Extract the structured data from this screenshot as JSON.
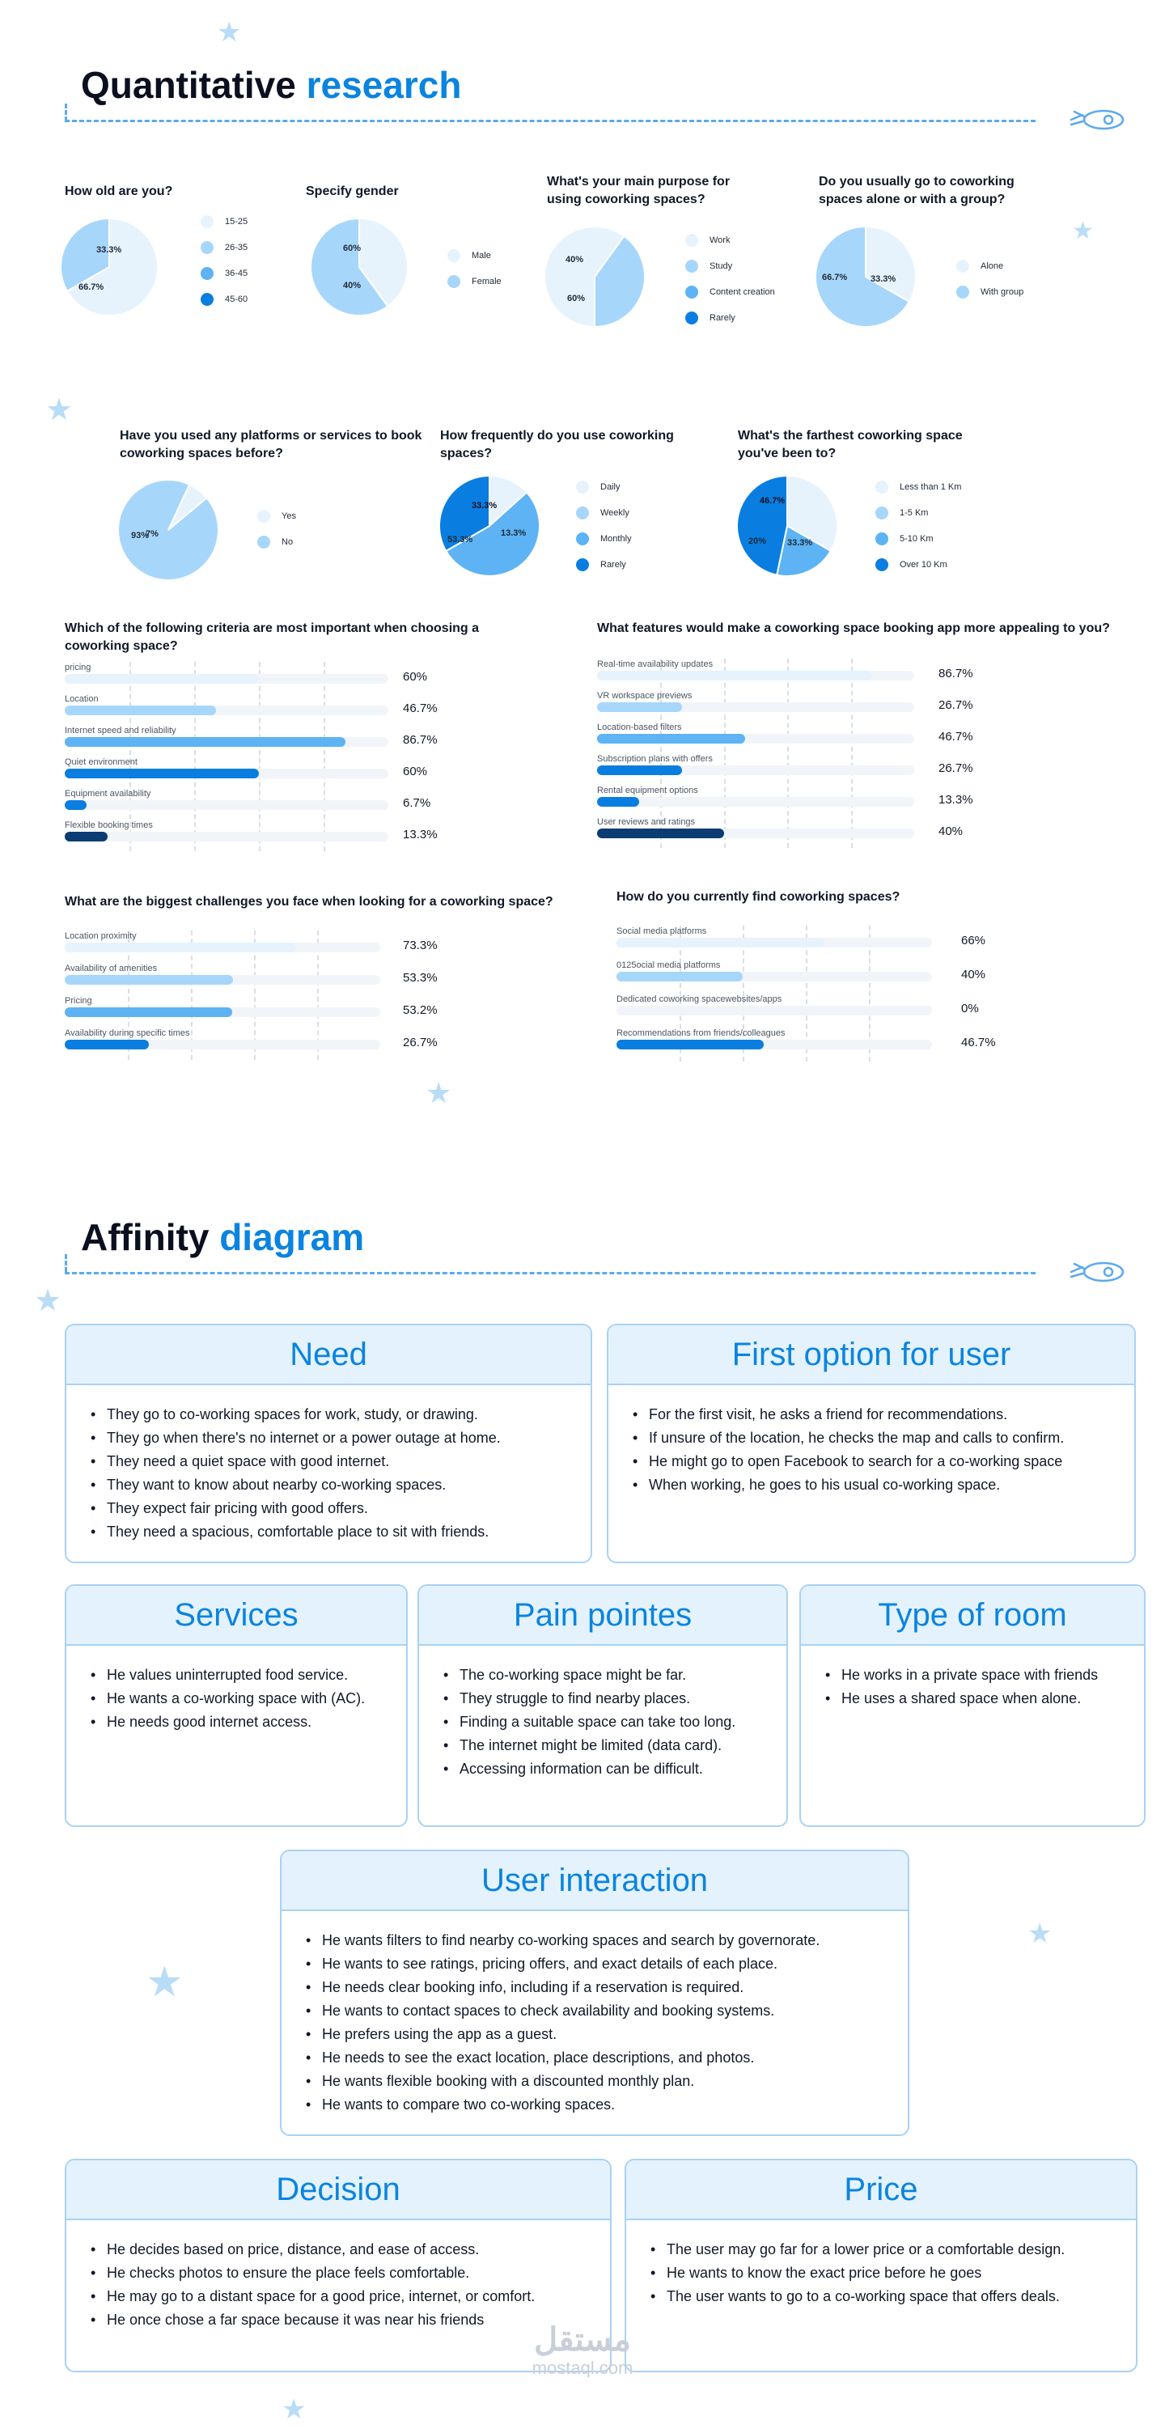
{
  "quant": {
    "title_main": "Quantitative",
    "title_accent": "research"
  },
  "affinity": {
    "title_main": "Affinity",
    "title_accent": "diagram"
  },
  "colors": {
    "c1": "#e6f3fd",
    "c2": "#a7d6fb",
    "c3": "#5db3f3",
    "c4": "#0a7ee0",
    "c5": "#0b3c73"
  },
  "chart_data": [
    {
      "type": "pie",
      "title": "How old are you?",
      "categories": [
        "15-25",
        "26-35",
        "36-45",
        "45-60"
      ],
      "values": [
        66.7,
        33.3,
        0,
        0
      ],
      "labels": [
        "66.7%",
        "33.3%"
      ]
    },
    {
      "type": "pie",
      "title": "Specify gender",
      "categories": [
        "Male",
        "Female"
      ],
      "values": [
        40,
        60
      ],
      "labels": [
        "40%",
        "60%"
      ]
    },
    {
      "type": "pie",
      "title": "What's your main purpose for using coworking spaces?",
      "categories": [
        "Work",
        "Study",
        "Content creation",
        "Rarely"
      ],
      "values": [
        60,
        40,
        0,
        0
      ],
      "labels": [
        "60%",
        "40%"
      ]
    },
    {
      "type": "pie",
      "title": "Do you usually go to coworking spaces alone or with a group?",
      "categories": [
        "Alone",
        "With group"
      ],
      "values": [
        33.3,
        66.7
      ],
      "labels": [
        "33.3%",
        "66.7%"
      ]
    },
    {
      "type": "pie",
      "title": "Have you used any platforms or services to book coworking spaces before?",
      "categories": [
        "Yes",
        "No"
      ],
      "values": [
        7,
        93
      ],
      "labels": [
        "7%",
        "93%"
      ]
    },
    {
      "type": "pie",
      "title": "How frequently do you use coworking spaces?",
      "categories": [
        "Daily",
        "Weekly",
        "Monthly",
        "Rarely"
      ],
      "values": [
        13.3,
        0,
        53.3,
        33.3
      ],
      "labels": [
        "13.3%",
        "53.3%",
        "33.3%"
      ]
    },
    {
      "type": "pie",
      "title": "What's the farthest coworking space you've been to?",
      "categories": [
        "Less than 1 Km",
        "1-5 Km",
        "5-10 Km",
        "Over 10 Km"
      ],
      "values": [
        33.3,
        0,
        20,
        46.7
      ],
      "labels": [
        "33.3%",
        "20%",
        "46.7%"
      ]
    },
    {
      "type": "bar",
      "title": "Which of the following criteria are most important when choosing a coworking space?",
      "categories": [
        "pricing",
        "Location",
        "Internet speed and reliability",
        "Quiet environment",
        "Equipment availability",
        "Flexible booking times"
      ],
      "values": [
        60,
        46.7,
        86.7,
        60,
        6.7,
        13.3
      ],
      "labels": [
        "60%",
        "46.7%",
        "86.7%",
        "60%",
        "6.7%",
        "13.3%"
      ]
    },
    {
      "type": "bar",
      "title": "What features would make a coworking space booking app more appealing to you?",
      "categories": [
        "Real-time availability updates",
        "VR workspace previews",
        "Location-based filters",
        "Subscription plans with offers",
        "Rental equipment options",
        "User reviews and ratings"
      ],
      "values": [
        86.7,
        26.7,
        46.7,
        26.7,
        13.3,
        40
      ],
      "labels": [
        "86.7%",
        "26.7%",
        "46.7%",
        "26.7%",
        "13.3%",
        "40%"
      ]
    },
    {
      "type": "bar",
      "title": "What are the biggest challenges you face when looking for a coworking space?",
      "categories": [
        "Location proximity",
        "Availability of amenities",
        "Pricing",
        "Availability during specific times"
      ],
      "values": [
        73.3,
        53.3,
        53.2,
        26.7
      ],
      "labels": [
        "73.3%",
        "53.3%",
        "53.2%",
        "26.7%"
      ]
    },
    {
      "type": "bar",
      "title": "How do you currently find coworking spaces?",
      "categories": [
        "Social media platforms",
        "0125ocial media platforms",
        "Dedicated coworking spacewebsites/apps",
        "Recommendations from friends/colleagues"
      ],
      "values": [
        66,
        40,
        0,
        46.7
      ],
      "labels": [
        "66%",
        "40%",
        "0%",
        "46.7%"
      ]
    }
  ],
  "cards": [
    {
      "title": "Need",
      "items": [
        "They go to co-working spaces for work, study, or drawing.",
        "They go when there's no internet or a power outage at home.",
        "They need a quiet space with good internet.",
        "They want to know about nearby co-working spaces.",
        "They expect fair pricing with good offers.",
        "They need a spacious, comfortable place to sit with friends."
      ]
    },
    {
      "title": "First option for user",
      "items": [
        "For the first visit, he asks a friend for recommendations.",
        "If unsure of the location, he checks the map and calls to confirm.",
        "He might go to open Facebook to search for a co-working space",
        "When  working, he goes to his usual co-working space."
      ]
    },
    {
      "title": "Services",
      "items": [
        "He values uninterrupted food service.",
        "He wants a co-working space with (AC).",
        "He needs good internet access."
      ]
    },
    {
      "title": "Pain pointes",
      "items": [
        "The co-working space might be far.",
        "They struggle to find nearby places.",
        "Finding a suitable space can take too long.",
        "The internet might be limited (data card).",
        "Accessing information can be difficult."
      ]
    },
    {
      "title": "Type of room",
      "items": [
        "He works in a private space with friends",
        "He uses a shared space when alone."
      ]
    },
    {
      "title": "User interaction",
      "items": [
        "He wants filters to find nearby co-working spaces and search by governorate.",
        "He wants to see ratings, pricing offers, and exact details of each place.",
        " He needs clear booking info, including if a reservation is required.",
        "He wants to contact spaces to check availability and booking systems.",
        "He prefers using the app as a guest.",
        "He needs to see the exact location, place descriptions, and photos.",
        "He wants flexible booking with a discounted monthly plan.",
        "He wants to compare two co-working spaces."
      ]
    },
    {
      "title": "Decision",
      "items": [
        "He decides based on price, distance, and ease of access.",
        "He checks photos to ensure the place feels comfortable.",
        "He may go to a distant space for a good price, internet, or comfort.",
        "He once chose a far space because it was near his friends"
      ]
    },
    {
      "title": "Price",
      "items": [
        "The user may go far for a lower price or a comfortable design.",
        "He wants to know the exact price before he goes",
        "The user wants to go to a co-working space that offers deals."
      ]
    }
  ],
  "watermark": {
    "arabic": "مستقل",
    "latin": "mostaql.com"
  }
}
